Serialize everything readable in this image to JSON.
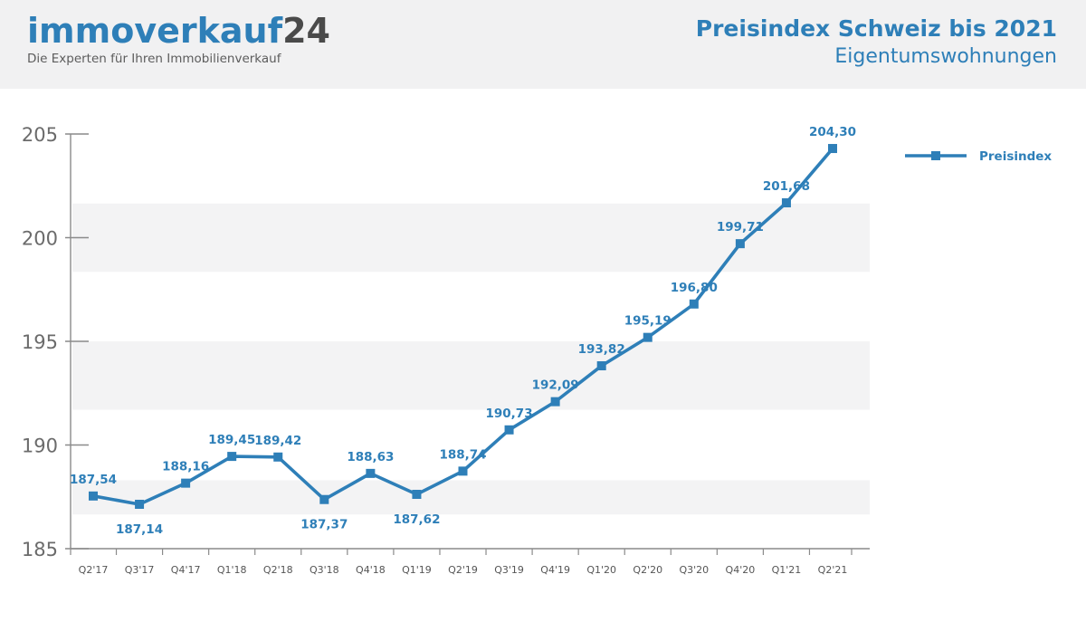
{
  "brand": {
    "name": "immoverkauf",
    "number": "24",
    "tagline": "Die Experten für Ihren Immobilienverkauf"
  },
  "chart_data": {
    "type": "line",
    "title": "Preisindex Schweiz bis 2021",
    "subtitle": "Eigentumswohnungen",
    "xlabel": "",
    "ylabel": "",
    "categories": [
      "Q2'17",
      "Q3'17",
      "Q4'17",
      "Q1'18",
      "Q2'18",
      "Q3'18",
      "Q4'18",
      "Q1'19",
      "Q2'19",
      "Q3'19",
      "Q4'19",
      "Q1'20",
      "Q2'20",
      "Q3'20",
      "Q4'20",
      "Q1'21",
      "Q2'21"
    ],
    "series": [
      {
        "name": "Preisindex",
        "values": [
          187.54,
          187.14,
          188.16,
          189.45,
          189.42,
          187.37,
          188.63,
          187.62,
          188.74,
          190.73,
          192.09,
          193.82,
          195.19,
          196.8,
          199.71,
          201.68,
          204.3
        ],
        "labels": [
          "187,54",
          "187,14",
          "188,16",
          "189,45",
          "189,42",
          "187,37",
          "188,63",
          "187,62",
          "188,74",
          "190,73",
          "192,09",
          "193,82",
          "195,19",
          "196,80",
          "199,71",
          "201,68",
          "204,30"
        ],
        "label_position": [
          "above",
          "below",
          "above",
          "above",
          "above",
          "below",
          "above",
          "below",
          "above",
          "above",
          "above",
          "above",
          "above",
          "above",
          "above",
          "above",
          "above"
        ],
        "color": "#2e7fb8",
        "marker": "square"
      }
    ],
    "ylim": [
      185,
      205
    ],
    "yticks": [
      "185",
      "190",
      "195",
      "200",
      "205"
    ],
    "grid": "alternating bands",
    "legend": "top-right"
  }
}
